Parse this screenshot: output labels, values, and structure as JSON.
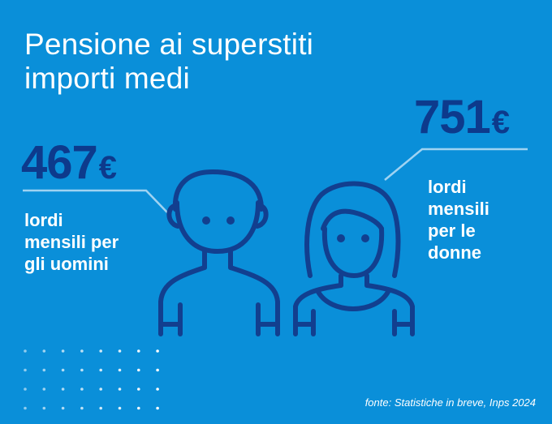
{
  "title": {
    "line1": "Pensione ai superstiti",
    "line2": "importi medi"
  },
  "men": {
    "amount": "467",
    "currency": "€",
    "label_lines": [
      "lordi",
      "mensili per",
      "gli uomini"
    ]
  },
  "women": {
    "amount": "751",
    "currency": "€",
    "label_lines": [
      "lordi",
      "mensili",
      "per le",
      "donne"
    ]
  },
  "footnote": "fonte: Statistiche in breve, Inps 2024",
  "colors": {
    "background": "#0a8fd9",
    "amount_text": "#0d3a8c",
    "icon_stroke": "#123f8f",
    "connector_line": "#9fd3f2",
    "text": "#ffffff"
  },
  "icons": {
    "man": "man-bust-icon",
    "woman": "woman-bust-icon"
  }
}
